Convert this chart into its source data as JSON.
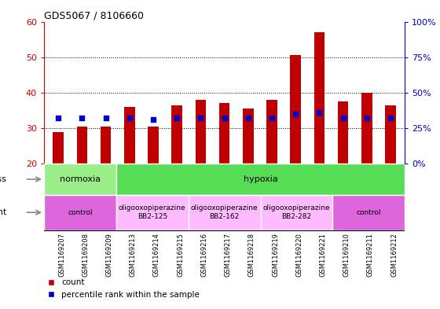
{
  "title": "GDS5067 / 8106660",
  "samples": [
    "GSM1169207",
    "GSM1169208",
    "GSM1169209",
    "GSM1169213",
    "GSM1169214",
    "GSM1169215",
    "GSM1169216",
    "GSM1169217",
    "GSM1169218",
    "GSM1169219",
    "GSM1169220",
    "GSM1169221",
    "GSM1169210",
    "GSM1169211",
    "GSM1169212"
  ],
  "counts": [
    29,
    30.5,
    30.5,
    36,
    30.5,
    36.5,
    38,
    37,
    35.5,
    38,
    50.5,
    57,
    37.5,
    40,
    36.5
  ],
  "percentile_pct": [
    32,
    32,
    32,
    32,
    31,
    32,
    32,
    32,
    32,
    32,
    35,
    36,
    32,
    32,
    32
  ],
  "bar_bottom": 20,
  "ylim_left": [
    20,
    60
  ],
  "ylim_right": [
    0,
    100
  ],
  "yticks_left": [
    20,
    30,
    40,
    50,
    60
  ],
  "yticks_right": [
    0,
    25,
    50,
    75,
    100
  ],
  "ytick_labels_right": [
    "0%",
    "25%",
    "50%",
    "75%",
    "100%"
  ],
  "grid_values": [
    30,
    40,
    50
  ],
  "bar_color": "#c00000",
  "percentile_color": "#0000cc",
  "stress_groups": [
    {
      "label": "normoxia",
      "start": 0,
      "end": 3,
      "color": "#99ee88"
    },
    {
      "label": "hypoxia",
      "start": 3,
      "end": 15,
      "color": "#55dd55"
    }
  ],
  "agent_groups": [
    {
      "label": "control",
      "start": 0,
      "end": 3,
      "color": "#dd66dd"
    },
    {
      "label": "oligooxopiperazine\nBB2-125",
      "start": 3,
      "end": 6,
      "color": "#ffbbff"
    },
    {
      "label": "oligooxopiperazine\nBB2-162",
      "start": 6,
      "end": 9,
      "color": "#ffbbff"
    },
    {
      "label": "oligooxopiperazine\nBB2-282",
      "start": 9,
      "end": 12,
      "color": "#ffbbff"
    },
    {
      "label": "control",
      "start": 12,
      "end": 15,
      "color": "#dd66dd"
    }
  ],
  "legend_count_label": "count",
  "legend_percentile_label": "percentile rank within the sample",
  "tick_color_left": "#cc0000",
  "tick_color_right": "#0000cc",
  "xticklabel_bg": "#cccccc",
  "plot_bg": "#ffffff"
}
